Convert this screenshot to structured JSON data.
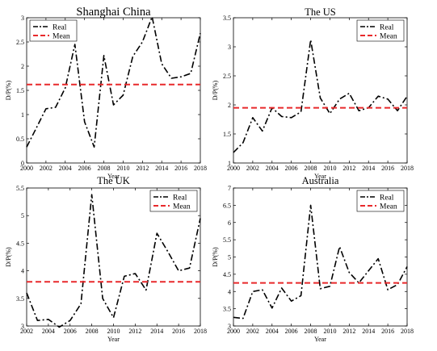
{
  "chart_data": [
    {
      "type": "line",
      "title": "Shanghai China",
      "xlabel": "Year",
      "ylabel": "D/P(%)",
      "xlim": [
        2000,
        2018
      ],
      "ylim": [
        0,
        3
      ],
      "xticks": [
        2000,
        2002,
        2004,
        2006,
        2008,
        2010,
        2012,
        2014,
        2016,
        2018
      ],
      "yticks": [
        0,
        0.5,
        1,
        1.5,
        2,
        2.5,
        3
      ],
      "xtick_labels": [
        "2000",
        "2002",
        "2004",
        "2006",
        "2008",
        "2010",
        "2012",
        "2014",
        "2016",
        "2018"
      ],
      "ytick_labels": [
        "0",
        "0.5",
        "1",
        "1.5",
        "2",
        "2.5",
        "3"
      ],
      "legend_position": "top-left",
      "series": [
        {
          "name": "Real",
          "style": "dash-dot",
          "color": "#000000",
          "x": [
            2000,
            2001,
            2002,
            2003,
            2004,
            2005,
            2006,
            2007,
            2008,
            2009,
            2010,
            2011,
            2012,
            2013,
            2014,
            2015,
            2016,
            2017,
            2018
          ],
          "y": [
            0.33,
            0.72,
            1.12,
            1.15,
            1.55,
            2.45,
            0.85,
            0.33,
            2.22,
            1.2,
            1.4,
            2.2,
            2.5,
            3.02,
            2.05,
            1.75,
            1.78,
            1.85,
            2.68
          ]
        },
        {
          "name": "Mean",
          "style": "dashed",
          "color": "#e8292b",
          "x": [
            2000,
            2018
          ],
          "y": [
            1.62,
            1.62
          ]
        }
      ]
    },
    {
      "type": "line",
      "title": "The US",
      "xlabel": "Year",
      "ylabel": "D/P(%)",
      "xlim": [
        2000,
        2018
      ],
      "ylim": [
        1,
        3.5
      ],
      "xticks": [
        2000,
        2002,
        2004,
        2006,
        2008,
        2010,
        2012,
        2014,
        2016,
        2018
      ],
      "yticks": [
        1,
        1.5,
        2,
        2.5,
        3,
        3.5
      ],
      "xtick_labels": [
        "2000",
        "2002",
        "2004",
        "2006",
        "2008",
        "2010",
        "2012",
        "2014",
        "2016",
        "2018"
      ],
      "ytick_labels": [
        "1",
        "1.5",
        "2",
        "2.5",
        "3",
        "3.5"
      ],
      "legend_position": "top-right",
      "series": [
        {
          "name": "Real",
          "style": "dash-dot",
          "color": "#000000",
          "x": [
            2000,
            2001,
            2002,
            2003,
            2004,
            2005,
            2006,
            2007,
            2008,
            2009,
            2010,
            2011,
            2012,
            2013,
            2014,
            2015,
            2016,
            2017,
            2018
          ],
          "y": [
            1.18,
            1.35,
            1.78,
            1.55,
            1.95,
            1.8,
            1.78,
            1.88,
            3.12,
            2.12,
            1.85,
            2.1,
            2.2,
            1.9,
            1.95,
            2.15,
            2.1,
            1.9,
            2.15
          ]
        },
        {
          "name": "Mean",
          "style": "dashed",
          "color": "#e8292b",
          "x": [
            2000,
            2018
          ],
          "y": [
            1.95,
            1.95
          ]
        }
      ]
    },
    {
      "type": "line",
      "title": "The UK",
      "xlabel": "Year",
      "ylabel": "D/P(%)",
      "xlim": [
        2002,
        2018
      ],
      "ylim": [
        3,
        5.5
      ],
      "xticks": [
        2002,
        2004,
        2006,
        2008,
        2010,
        2012,
        2014,
        2016,
        2018
      ],
      "yticks": [
        3,
        3.5,
        4,
        4.5,
        5,
        5.5
      ],
      "xtick_labels": [
        "2002",
        "2004",
        "2006",
        "2008",
        "2010",
        "2012",
        "2014",
        "2016",
        "2018"
      ],
      "ytick_labels": [
        "3",
        "3.5",
        "4",
        "4.5",
        "5",
        "5.5"
      ],
      "legend_position": "top-right",
      "series": [
        {
          "name": "Real",
          "style": "dash-dot",
          "color": "#000000",
          "x": [
            2002,
            2003,
            2004,
            2005,
            2006,
            2007,
            2008,
            2009,
            2010,
            2011,
            2012,
            2013,
            2014,
            2015,
            2016,
            2017,
            2018
          ],
          "y": [
            3.6,
            3.1,
            3.12,
            2.98,
            3.1,
            3.4,
            5.38,
            3.5,
            3.15,
            3.9,
            3.95,
            3.65,
            4.68,
            4.35,
            4.0,
            4.05,
            4.95
          ]
        },
        {
          "name": "Mean",
          "style": "dashed",
          "color": "#e8292b",
          "x": [
            2002,
            2018
          ],
          "y": [
            3.8,
            3.8
          ]
        }
      ]
    },
    {
      "type": "line",
      "title": "Australia",
      "xlabel": "Year",
      "ylabel": "D/P(%)",
      "xlim": [
        2000,
        2018
      ],
      "ylim": [
        3,
        7
      ],
      "xticks": [
        2000,
        2002,
        2004,
        2006,
        2008,
        2010,
        2012,
        2014,
        2016,
        2018
      ],
      "yticks": [
        3,
        3.5,
        4,
        4.5,
        5,
        5.5,
        6,
        6.5,
        7
      ],
      "xtick_labels": [
        "2000",
        "2002",
        "2004",
        "2006",
        "2008",
        "2010",
        "2012",
        "2014",
        "2016",
        "2018"
      ],
      "ytick_labels": [
        "3",
        "3.5",
        "4",
        "4.5",
        "5",
        "5.5",
        "6",
        "6.5",
        "7"
      ],
      "legend_position": "top-right",
      "series": [
        {
          "name": "Real",
          "style": "dash-dot",
          "color": "#000000",
          "x": [
            2000,
            2001,
            2002,
            2003,
            2004,
            2005,
            2006,
            2007,
            2008,
            2009,
            2010,
            2011,
            2012,
            2013,
            2014,
            2015,
            2016,
            2017,
            2018
          ],
          "y": [
            3.25,
            3.22,
            4.0,
            4.05,
            3.52,
            4.1,
            3.72,
            3.88,
            6.5,
            4.08,
            4.15,
            5.3,
            4.55,
            4.25,
            4.6,
            4.95,
            4.05,
            4.2,
            4.72
          ]
        },
        {
          "name": "Mean",
          "style": "dashed",
          "color": "#e8292b",
          "x": [
            2000,
            2018
          ],
          "y": [
            4.25,
            4.25
          ]
        }
      ]
    }
  ]
}
